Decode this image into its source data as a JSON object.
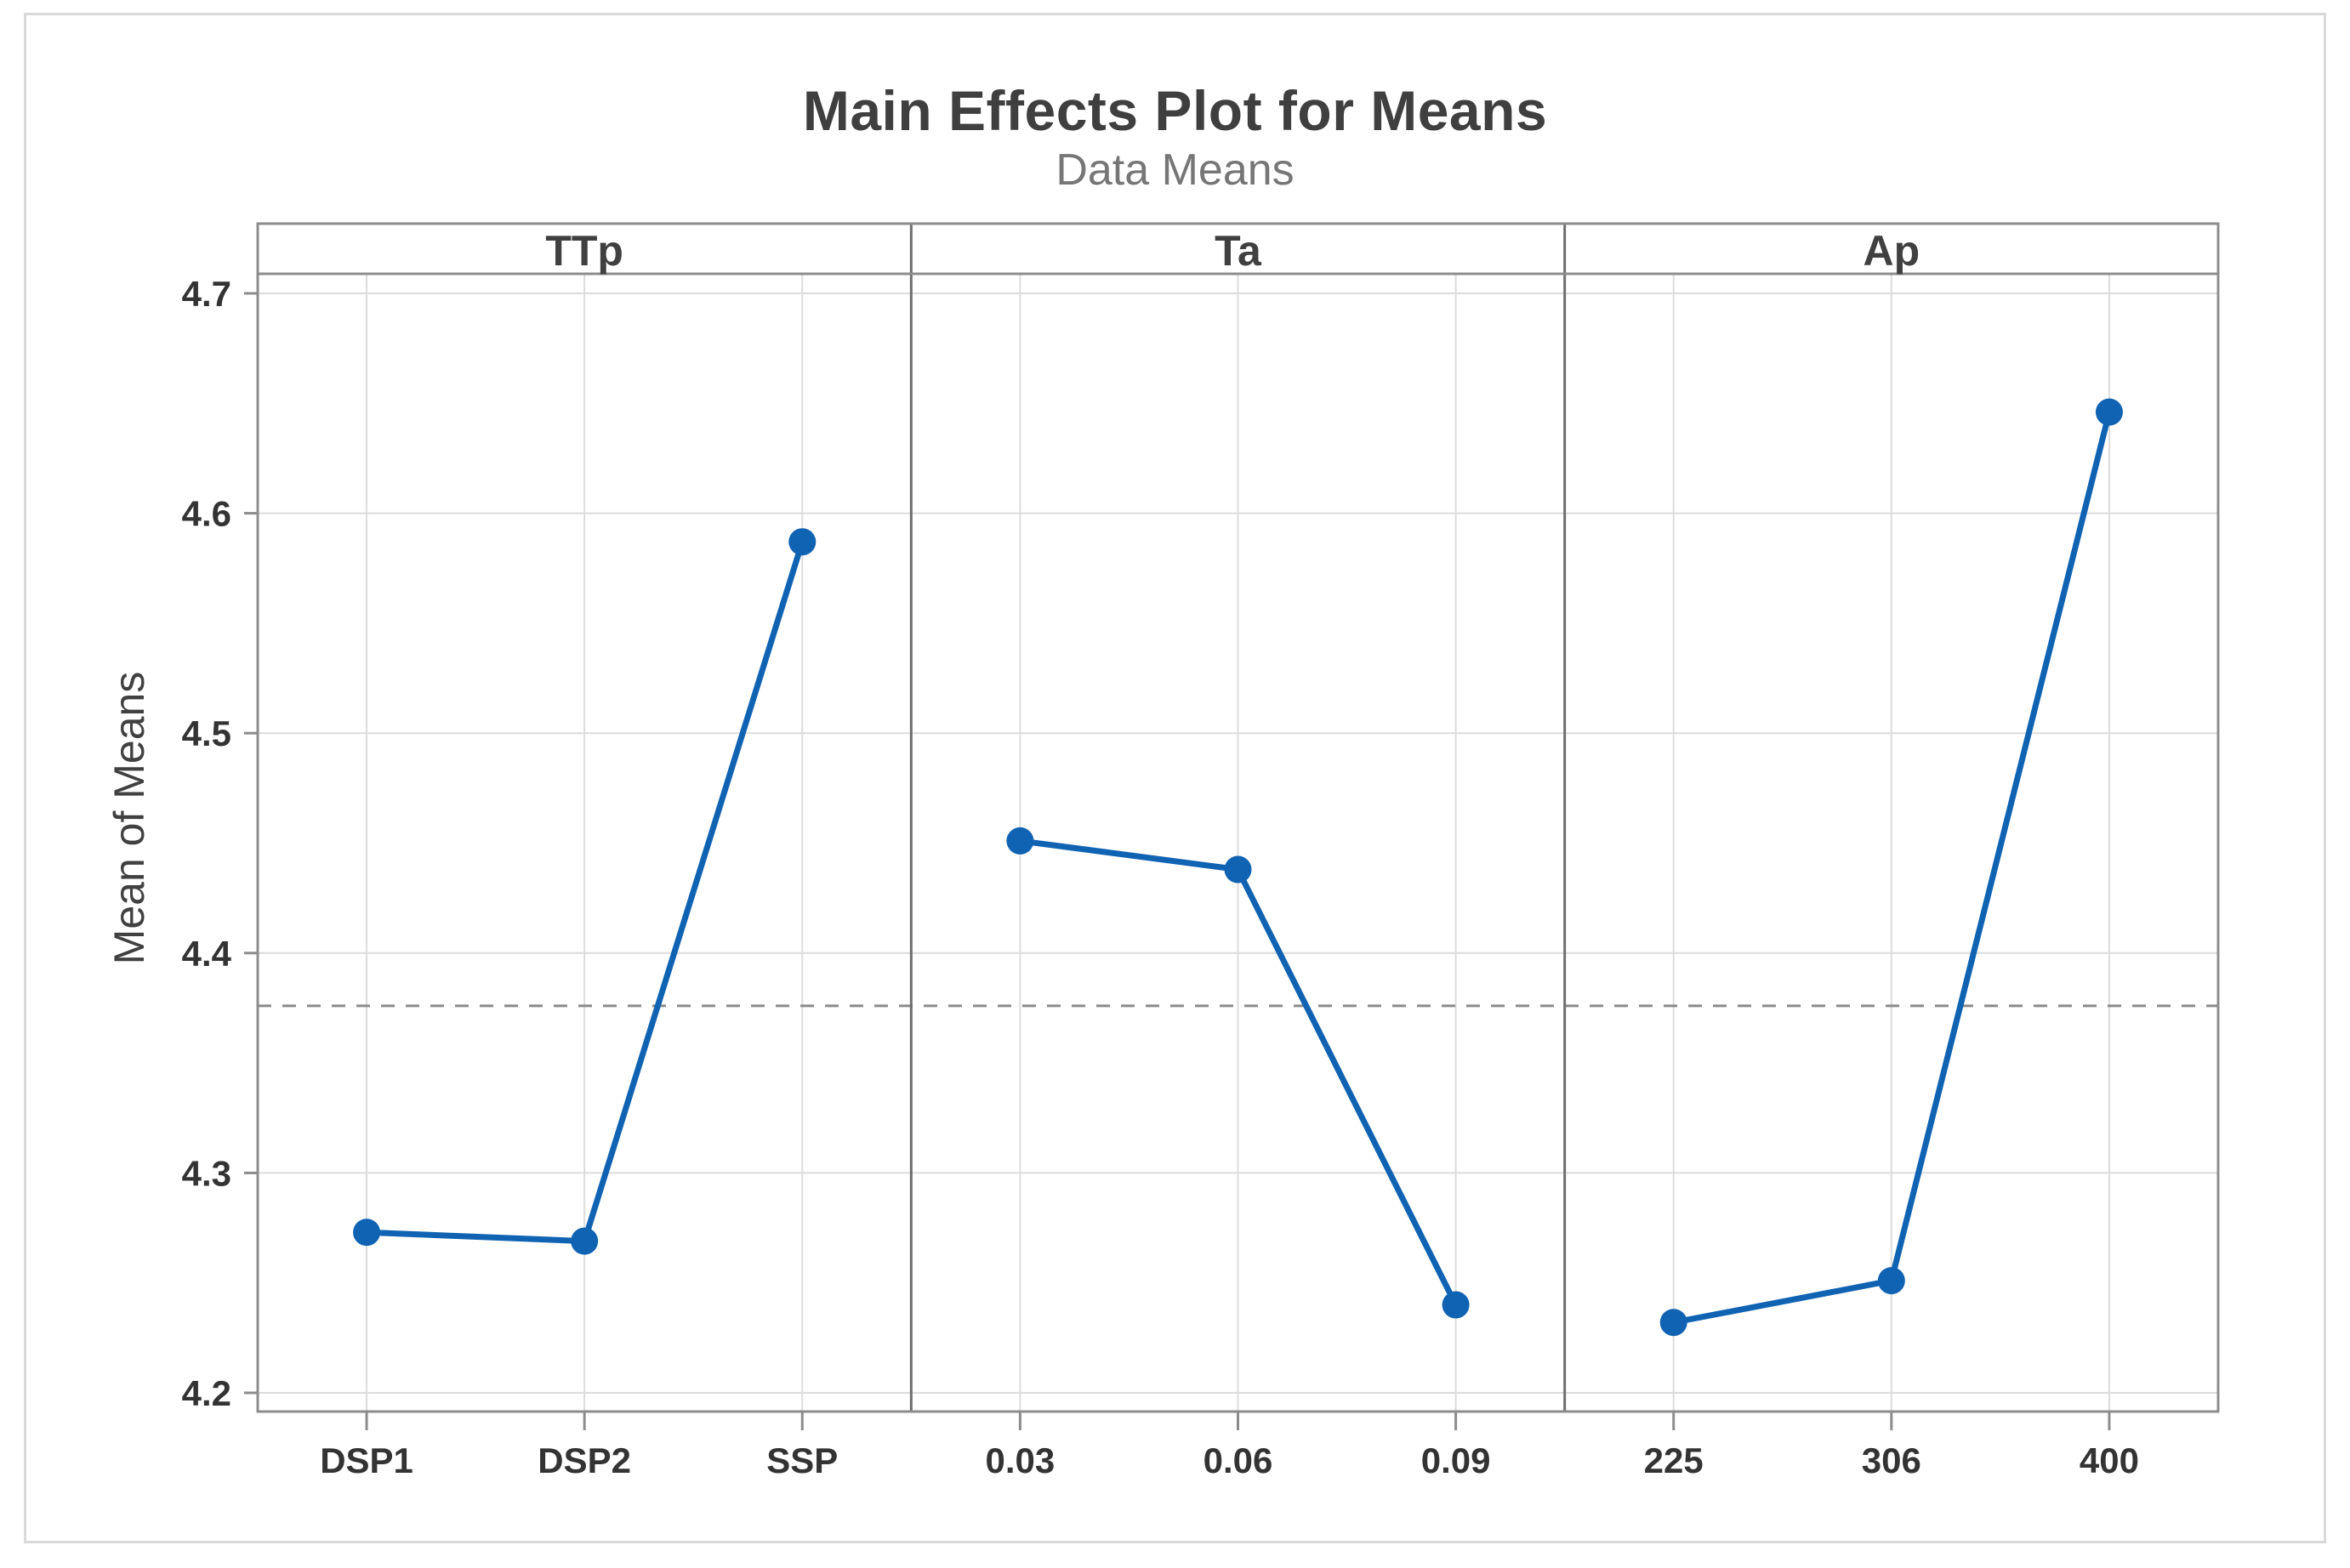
{
  "chart_data": {
    "type": "line",
    "title": "Main Effects Plot for Means",
    "subtitle": "Data Means",
    "ylabel": "Mean of Means",
    "ylim": [
      4.19,
      4.73
    ],
    "yticks": [
      "4.2",
      "4.3",
      "4.4",
      "4.5",
      "4.6",
      "4.7"
    ],
    "grid": true,
    "panels": [
      {
        "factor": "TTp",
        "categories": [
          "DSP1",
          "DSP2",
          "SSP"
        ],
        "values": [
          4.273,
          4.269,
          4.587
        ]
      },
      {
        "factor": "Ta",
        "categories": [
          "0.03",
          "0.06",
          "0.09"
        ],
        "values": [
          4.451,
          4.438,
          4.24
        ]
      },
      {
        "factor": "Ap",
        "categories": [
          "225",
          "306",
          "400"
        ],
        "values": [
          4.232,
          4.251,
          4.646
        ]
      }
    ],
    "mean_line": {
      "value": 4.376,
      "style": "dashed"
    }
  },
  "style": {
    "series_color": "#1062b2",
    "marker_radius": 16,
    "line_width": 7,
    "grid_color": "#dcdcdc",
    "frame_color": "#8c8c8c",
    "separator_color": "#6e6e6e",
    "tick_color": "#8c8c8c",
    "dash_color": "#8a8a8a",
    "tick_label_color": "#333333",
    "header_label_color": "#404040",
    "title_color": "#3f3f3f",
    "subtitle_color": "#767676"
  }
}
